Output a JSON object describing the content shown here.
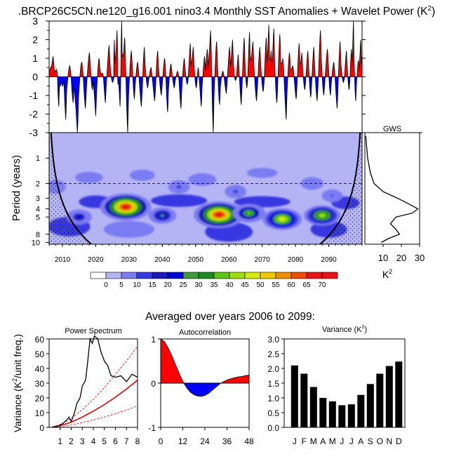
{
  "title": ".BRCP26C5CN.ne120_g16.001 nino3.4 Monthly SST Anomalies + Wavelet Power (K",
  "title_sup": "2",
  "title_close": ")",
  "colors": {
    "positive": "#ff0000",
    "negative": "#0000ff",
    "black": "#000000",
    "trend": "#dd0000"
  },
  "chart_data": [
    {
      "id": "sst-anomaly",
      "type": "area",
      "title": "nino3.4 Monthly SST Anomalies",
      "ylim": [
        -3,
        3
      ],
      "yticks": [
        "3",
        "2",
        "1",
        "0",
        "-1",
        "-2",
        "-3"
      ],
      "x_range": [
        2006,
        2100
      ],
      "peaks": [
        {
          "x": 2007.2,
          "y": 1.1
        },
        {
          "x": 2008.2,
          "y": 0.4
        },
        {
          "x": 2008.9,
          "y": -1.6
        },
        {
          "x": 2010.1,
          "y": -0.5
        },
        {
          "x": 2011.0,
          "y": -2.3
        },
        {
          "x": 2012.2,
          "y": 0.6
        },
        {
          "x": 2013.2,
          "y": -1.4
        },
        {
          "x": 2014.5,
          "y": -3.0
        },
        {
          "x": 2015.8,
          "y": 0.8
        },
        {
          "x": 2016.9,
          "y": -1.7
        },
        {
          "x": 2018.1,
          "y": 1.3
        },
        {
          "x": 2019.0,
          "y": -0.7
        },
        {
          "x": 2020.0,
          "y": -2.1
        },
        {
          "x": 2021.0,
          "y": 1.0
        },
        {
          "x": 2022.0,
          "y": 0.2
        },
        {
          "x": 2022.9,
          "y": -1.4
        },
        {
          "x": 2024.0,
          "y": 1.7
        },
        {
          "x": 2025.1,
          "y": -0.3
        },
        {
          "x": 2025.6,
          "y": 2.0
        },
        {
          "x": 2026.4,
          "y": 2.5
        },
        {
          "x": 2026.7,
          "y": -0.4
        },
        {
          "x": 2027.3,
          "y": -1.6
        },
        {
          "x": 2027.8,
          "y": 3.0
        },
        {
          "x": 2028.7,
          "y": 2.1
        },
        {
          "x": 2029.6,
          "y": -3.0
        },
        {
          "x": 2030.7,
          "y": 1.4
        },
        {
          "x": 2031.6,
          "y": -1.2
        },
        {
          "x": 2032.6,
          "y": 0.8
        },
        {
          "x": 2033.7,
          "y": -1.6
        },
        {
          "x": 2034.6,
          "y": 1.6
        },
        {
          "x": 2035.6,
          "y": -0.6
        },
        {
          "x": 2036.6,
          "y": 0.5
        },
        {
          "x": 2037.7,
          "y": -1.3
        },
        {
          "x": 2038.6,
          "y": 1.4
        },
        {
          "x": 2039.7,
          "y": -1.0
        },
        {
          "x": 2040.7,
          "y": 1.0
        },
        {
          "x": 2041.6,
          "y": -1.9
        },
        {
          "x": 2042.6,
          "y": 0.7
        },
        {
          "x": 2043.6,
          "y": -0.6
        },
        {
          "x": 2044.6,
          "y": 0.3
        },
        {
          "x": 2045.6,
          "y": -1.7
        },
        {
          "x": 2046.6,
          "y": 1.0
        },
        {
          "x": 2047.5,
          "y": -0.4
        },
        {
          "x": 2048.4,
          "y": 1.8
        },
        {
          "x": 2049.3,
          "y": 1.6
        },
        {
          "x": 2050.2,
          "y": -0.6
        },
        {
          "x": 2050.8,
          "y": 0.5
        },
        {
          "x": 2051.7,
          "y": -1.6
        },
        {
          "x": 2052.7,
          "y": 1.1
        },
        {
          "x": 2053.5,
          "y": 1.5
        },
        {
          "x": 2054.5,
          "y": 2.5
        },
        {
          "x": 2055.3,
          "y": -3.0
        },
        {
          "x": 2056.3,
          "y": 1.9
        },
        {
          "x": 2057.2,
          "y": -1.5
        },
        {
          "x": 2058.2,
          "y": 0.3
        },
        {
          "x": 2059.2,
          "y": -0.9
        },
        {
          "x": 2060.2,
          "y": 1.6
        },
        {
          "x": 2061.1,
          "y": 2.0
        },
        {
          "x": 2062.0,
          "y": -0.2
        },
        {
          "x": 2062.8,
          "y": 1.2
        },
        {
          "x": 2063.7,
          "y": -1.5
        },
        {
          "x": 2064.6,
          "y": 2.1
        },
        {
          "x": 2065.4,
          "y": -0.6
        },
        {
          "x": 2066.2,
          "y": 2.4
        },
        {
          "x": 2067.2,
          "y": 1.9
        },
        {
          "x": 2068.3,
          "y": -1.3
        },
        {
          "x": 2069.3,
          "y": 1.6
        },
        {
          "x": 2070.3,
          "y": -0.8
        },
        {
          "x": 2071.2,
          "y": 2.1
        },
        {
          "x": 2072.0,
          "y": 2.8
        },
        {
          "x": 2072.7,
          "y": 1.4
        },
        {
          "x": 2073.5,
          "y": 2.6
        },
        {
          "x": 2074.4,
          "y": -1.4
        },
        {
          "x": 2075.3,
          "y": 2.3
        },
        {
          "x": 2076.2,
          "y": 1.0
        },
        {
          "x": 2077.2,
          "y": -2.3
        },
        {
          "x": 2078.2,
          "y": 1.3
        },
        {
          "x": 2079.2,
          "y": 0.6
        },
        {
          "x": 2080.2,
          "y": -1.2
        },
        {
          "x": 2081.1,
          "y": 1.8
        },
        {
          "x": 2081.9,
          "y": 1.3
        },
        {
          "x": 2082.8,
          "y": -0.7
        },
        {
          "x": 2083.7,
          "y": 1.4
        },
        {
          "x": 2084.6,
          "y": -1.1
        },
        {
          "x": 2085.5,
          "y": 1.6
        },
        {
          "x": 2086.5,
          "y": -1.3
        },
        {
          "x": 2087.5,
          "y": 2.5
        },
        {
          "x": 2088.5,
          "y": -1.0
        },
        {
          "x": 2089.6,
          "y": 1.5
        },
        {
          "x": 2090.5,
          "y": -1.0
        },
        {
          "x": 2091.5,
          "y": 0.8
        },
        {
          "x": 2092.5,
          "y": -1.7
        },
        {
          "x": 2093.4,
          "y": 1.9
        },
        {
          "x": 2094.4,
          "y": -0.3
        },
        {
          "x": 2095.3,
          "y": 1.4
        },
        {
          "x": 2096.1,
          "y": -0.7
        },
        {
          "x": 2096.8,
          "y": 1.5
        },
        {
          "x": 2097.4,
          "y": 3.0
        },
        {
          "x": 2098.1,
          "y": -1.3
        },
        {
          "x": 2098.9,
          "y": 0.9
        },
        {
          "x": 2099.6,
          "y": 2.0
        }
      ]
    },
    {
      "id": "wavelet-power",
      "type": "heatmap",
      "ylabel": "Period (years)",
      "xlim": [
        2006,
        2100
      ],
      "period_range": [
        0.5,
        10.5
      ],
      "yticks": [
        "1",
        "2",
        "3",
        "4",
        "5",
        "8",
        "10"
      ],
      "xticks": [
        "2010",
        "2020",
        "2030",
        "2040",
        "2050",
        "2060",
        "2070",
        "2080",
        "2090"
      ],
      "dashed_period": 2,
      "colorbar": {
        "levels": [
          "0",
          "5",
          "10",
          "15",
          "20",
          "25",
          "30",
          "35",
          "40",
          "45",
          "50",
          "55",
          "60",
          "65",
          "70"
        ],
        "colors": [
          "#ffffff",
          "#b4b4f4",
          "#7b7bf2",
          "#3838e0",
          "#1a1ab4",
          "#0000d8",
          "#3c9a3c",
          "#1c8a1c",
          "#5cc414",
          "#a0dc14",
          "#d8e814",
          "#f0c800",
          "#f08c00",
          "#e85000",
          "#e81414",
          "#e81414"
        ]
      },
      "blobs": [
        {
          "x": 2029,
          "period": 3.8,
          "power": 72,
          "label": "peak-2029"
        },
        {
          "x": 2057,
          "period": 4.7,
          "power": 70,
          "label": "peak-2057"
        },
        {
          "x": 2076,
          "period": 5.3,
          "power": 48,
          "label": "peak-2076"
        },
        {
          "x": 2088,
          "period": 4.8,
          "power": 42,
          "label": "peak-2088"
        },
        {
          "x": 2066,
          "period": 4.5,
          "power": 35,
          "label": "peak-2066"
        },
        {
          "x": 2040,
          "period": 4.8,
          "power": 25,
          "label": "peak-2040"
        },
        {
          "x": 2015,
          "period": 5.0,
          "power": 20,
          "label": "peak-2015"
        },
        {
          "x": 2045,
          "period": 2.2,
          "power": 12,
          "label": "peak-2045"
        },
        {
          "x": 2062,
          "period": 2.5,
          "power": 12,
          "label": "peak-2062"
        },
        {
          "x": 2091,
          "period": 2.8,
          "power": 10,
          "label": "peak-2091"
        }
      ]
    },
    {
      "id": "gws",
      "type": "line",
      "title": "GWS",
      "xlabel": "K",
      "xlabel_sup": "2",
      "xlim": [
        0,
        30
      ],
      "xticks": [
        "10",
        "20",
        "30"
      ],
      "points": [
        {
          "period": 0.55,
          "power": 0.5
        },
        {
          "period": 1.0,
          "power": 1.5
        },
        {
          "period": 1.5,
          "power": 3
        },
        {
          "period": 2.0,
          "power": 5
        },
        {
          "period": 2.5,
          "power": 10
        },
        {
          "period": 3.0,
          "power": 18
        },
        {
          "period": 3.5,
          "power": 24
        },
        {
          "period": 4.0,
          "power": 29
        },
        {
          "period": 4.5,
          "power": 26
        },
        {
          "period": 5.0,
          "power": 17
        },
        {
          "period": 6.0,
          "power": 14
        },
        {
          "period": 7.0,
          "power": 17
        },
        {
          "period": 8.0,
          "power": 19
        },
        {
          "period": 9.0,
          "power": 13
        },
        {
          "period": 10.0,
          "power": 9
        }
      ]
    },
    {
      "id": "power-spectrum",
      "type": "line",
      "title": "Power Spectrum",
      "ylabel": "Variance (K",
      "ylabel_sup": "2",
      "ylabel_close": "/unit freq.)",
      "xlim": [
        0,
        8
      ],
      "ylim": [
        0,
        60
      ],
      "xticks": [
        "1",
        "2",
        "3",
        "4",
        "5",
        "6",
        "7",
        "8"
      ],
      "yticks": [
        "60",
        "50",
        "40",
        "30",
        "20",
        "10",
        "0"
      ],
      "series": [
        {
          "name": "spectrum",
          "x": [
            0.3,
            0.7,
            1.0,
            1.3,
            1.6,
            1.8,
            2.0,
            2.3,
            2.5,
            2.8,
            3.0,
            3.3,
            3.5,
            3.7,
            3.9,
            4.1,
            4.4,
            4.7,
            5.0,
            5.3,
            5.6,
            6.0,
            6.5,
            7.0,
            7.5,
            8.0
          ],
          "y": [
            0.3,
            0.5,
            1.5,
            3,
            5,
            7,
            4,
            10,
            16,
            20,
            28,
            32,
            45,
            60,
            57,
            62,
            60,
            51,
            45,
            42,
            35,
            34,
            35,
            31,
            36,
            34
          ]
        },
        {
          "name": "red-noise",
          "x": [
            0.3,
            1,
            2,
            3,
            4,
            5,
            6,
            7,
            8
          ],
          "y": [
            0.2,
            1.2,
            3.5,
            7,
            11,
            15.5,
            20.5,
            26,
            32
          ]
        },
        {
          "name": "upper-conf",
          "x": [
            0.3,
            1,
            2,
            3,
            4,
            5,
            6,
            7,
            8
          ],
          "y": [
            0.3,
            2,
            6,
            12,
            19,
            27,
            36,
            45,
            55
          ]
        },
        {
          "name": "lower-conf",
          "x": [
            0.3,
            1,
            2,
            3,
            4,
            5,
            6,
            7,
            8
          ],
          "y": [
            0.1,
            0.5,
            1.6,
            3.2,
            5,
            7,
            9.3,
            11.7,
            14.5
          ]
        }
      ]
    },
    {
      "id": "autocorrelation",
      "type": "area",
      "title": "Autocorrelation",
      "xlim": [
        0,
        48
      ],
      "ylim": [
        -1,
        1
      ],
      "xticks": [
        "0",
        "12",
        "24",
        "36",
        "48"
      ],
      "yticks": [
        "1",
        "0",
        "-1"
      ],
      "x": [
        0,
        2,
        4,
        6,
        8,
        10,
        12,
        14,
        16,
        18,
        20,
        22,
        24,
        26,
        28,
        30,
        32,
        34,
        36,
        38,
        40,
        42,
        44,
        46,
        48
      ],
      "y": [
        1.0,
        0.94,
        0.8,
        0.62,
        0.42,
        0.22,
        0.04,
        -0.1,
        -0.2,
        -0.26,
        -0.29,
        -0.3,
        -0.28,
        -0.23,
        -0.16,
        -0.09,
        -0.02,
        0.03,
        0.07,
        0.1,
        0.12,
        0.14,
        0.15,
        0.17,
        0.18
      ]
    },
    {
      "id": "variance",
      "type": "bar",
      "title": "Variance (K",
      "title_sup": "2",
      "title_close": ")",
      "categories": [
        "J",
        "F",
        "M",
        "A",
        "M",
        "J",
        "J",
        "A",
        "S",
        "O",
        "N",
        "D"
      ],
      "values": [
        2.1,
        1.82,
        1.37,
        1.0,
        0.88,
        0.75,
        0.78,
        1.1,
        1.47,
        1.82,
        2.08,
        2.23
      ],
      "ylim": [
        0,
        3
      ],
      "yticks": [
        "3.0",
        "2.5",
        "2.0",
        "1.5",
        "1.0",
        "0.5",
        "0.0"
      ]
    }
  ],
  "averaged_label": "Averaged over years 2006 to 2099:"
}
